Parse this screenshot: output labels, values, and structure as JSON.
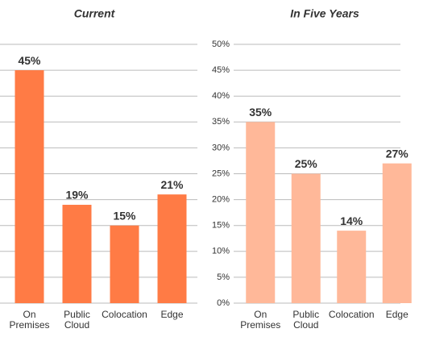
{
  "chart_data": [
    {
      "type": "bar",
      "title": "Current",
      "categories": [
        "On Premises",
        "Public Cloud",
        "Colocation",
        "Edge"
      ],
      "values": [
        45,
        19,
        15,
        21
      ],
      "value_labels": [
        "45%",
        "19%",
        "15%",
        "21%"
      ],
      "color": "#ff7b45",
      "ylim": [
        0,
        50
      ],
      "yticks": [
        0,
        5,
        10,
        15,
        20,
        25,
        30,
        35,
        40,
        45,
        50
      ],
      "grid": true
    },
    {
      "type": "bar",
      "title": "In Five Years",
      "categories": [
        "On Premises",
        "Public Cloud",
        "Colocation",
        "Edge"
      ],
      "values": [
        35,
        25,
        14,
        27
      ],
      "value_labels": [
        "35%",
        "25%",
        "14%",
        "27%"
      ],
      "color": "#ffb899",
      "ylim": [
        0,
        50
      ],
      "yticks": [
        {
          "value": 0,
          "label": "0%"
        },
        {
          "value": 5,
          "label": "5%"
        },
        {
          "value": 10,
          "label": "10%"
        },
        {
          "value": 15,
          "label": "15%"
        },
        {
          "value": 20,
          "label": "20%"
        },
        {
          "value": 25,
          "label": "25%"
        },
        {
          "value": 30,
          "label": "30%"
        },
        {
          "value": 35,
          "label": "35%"
        },
        {
          "value": 40,
          "label": "40%"
        },
        {
          "value": 45,
          "label": "45%"
        },
        {
          "value": 50,
          "label": "50%"
        }
      ],
      "grid": true
    }
  ]
}
